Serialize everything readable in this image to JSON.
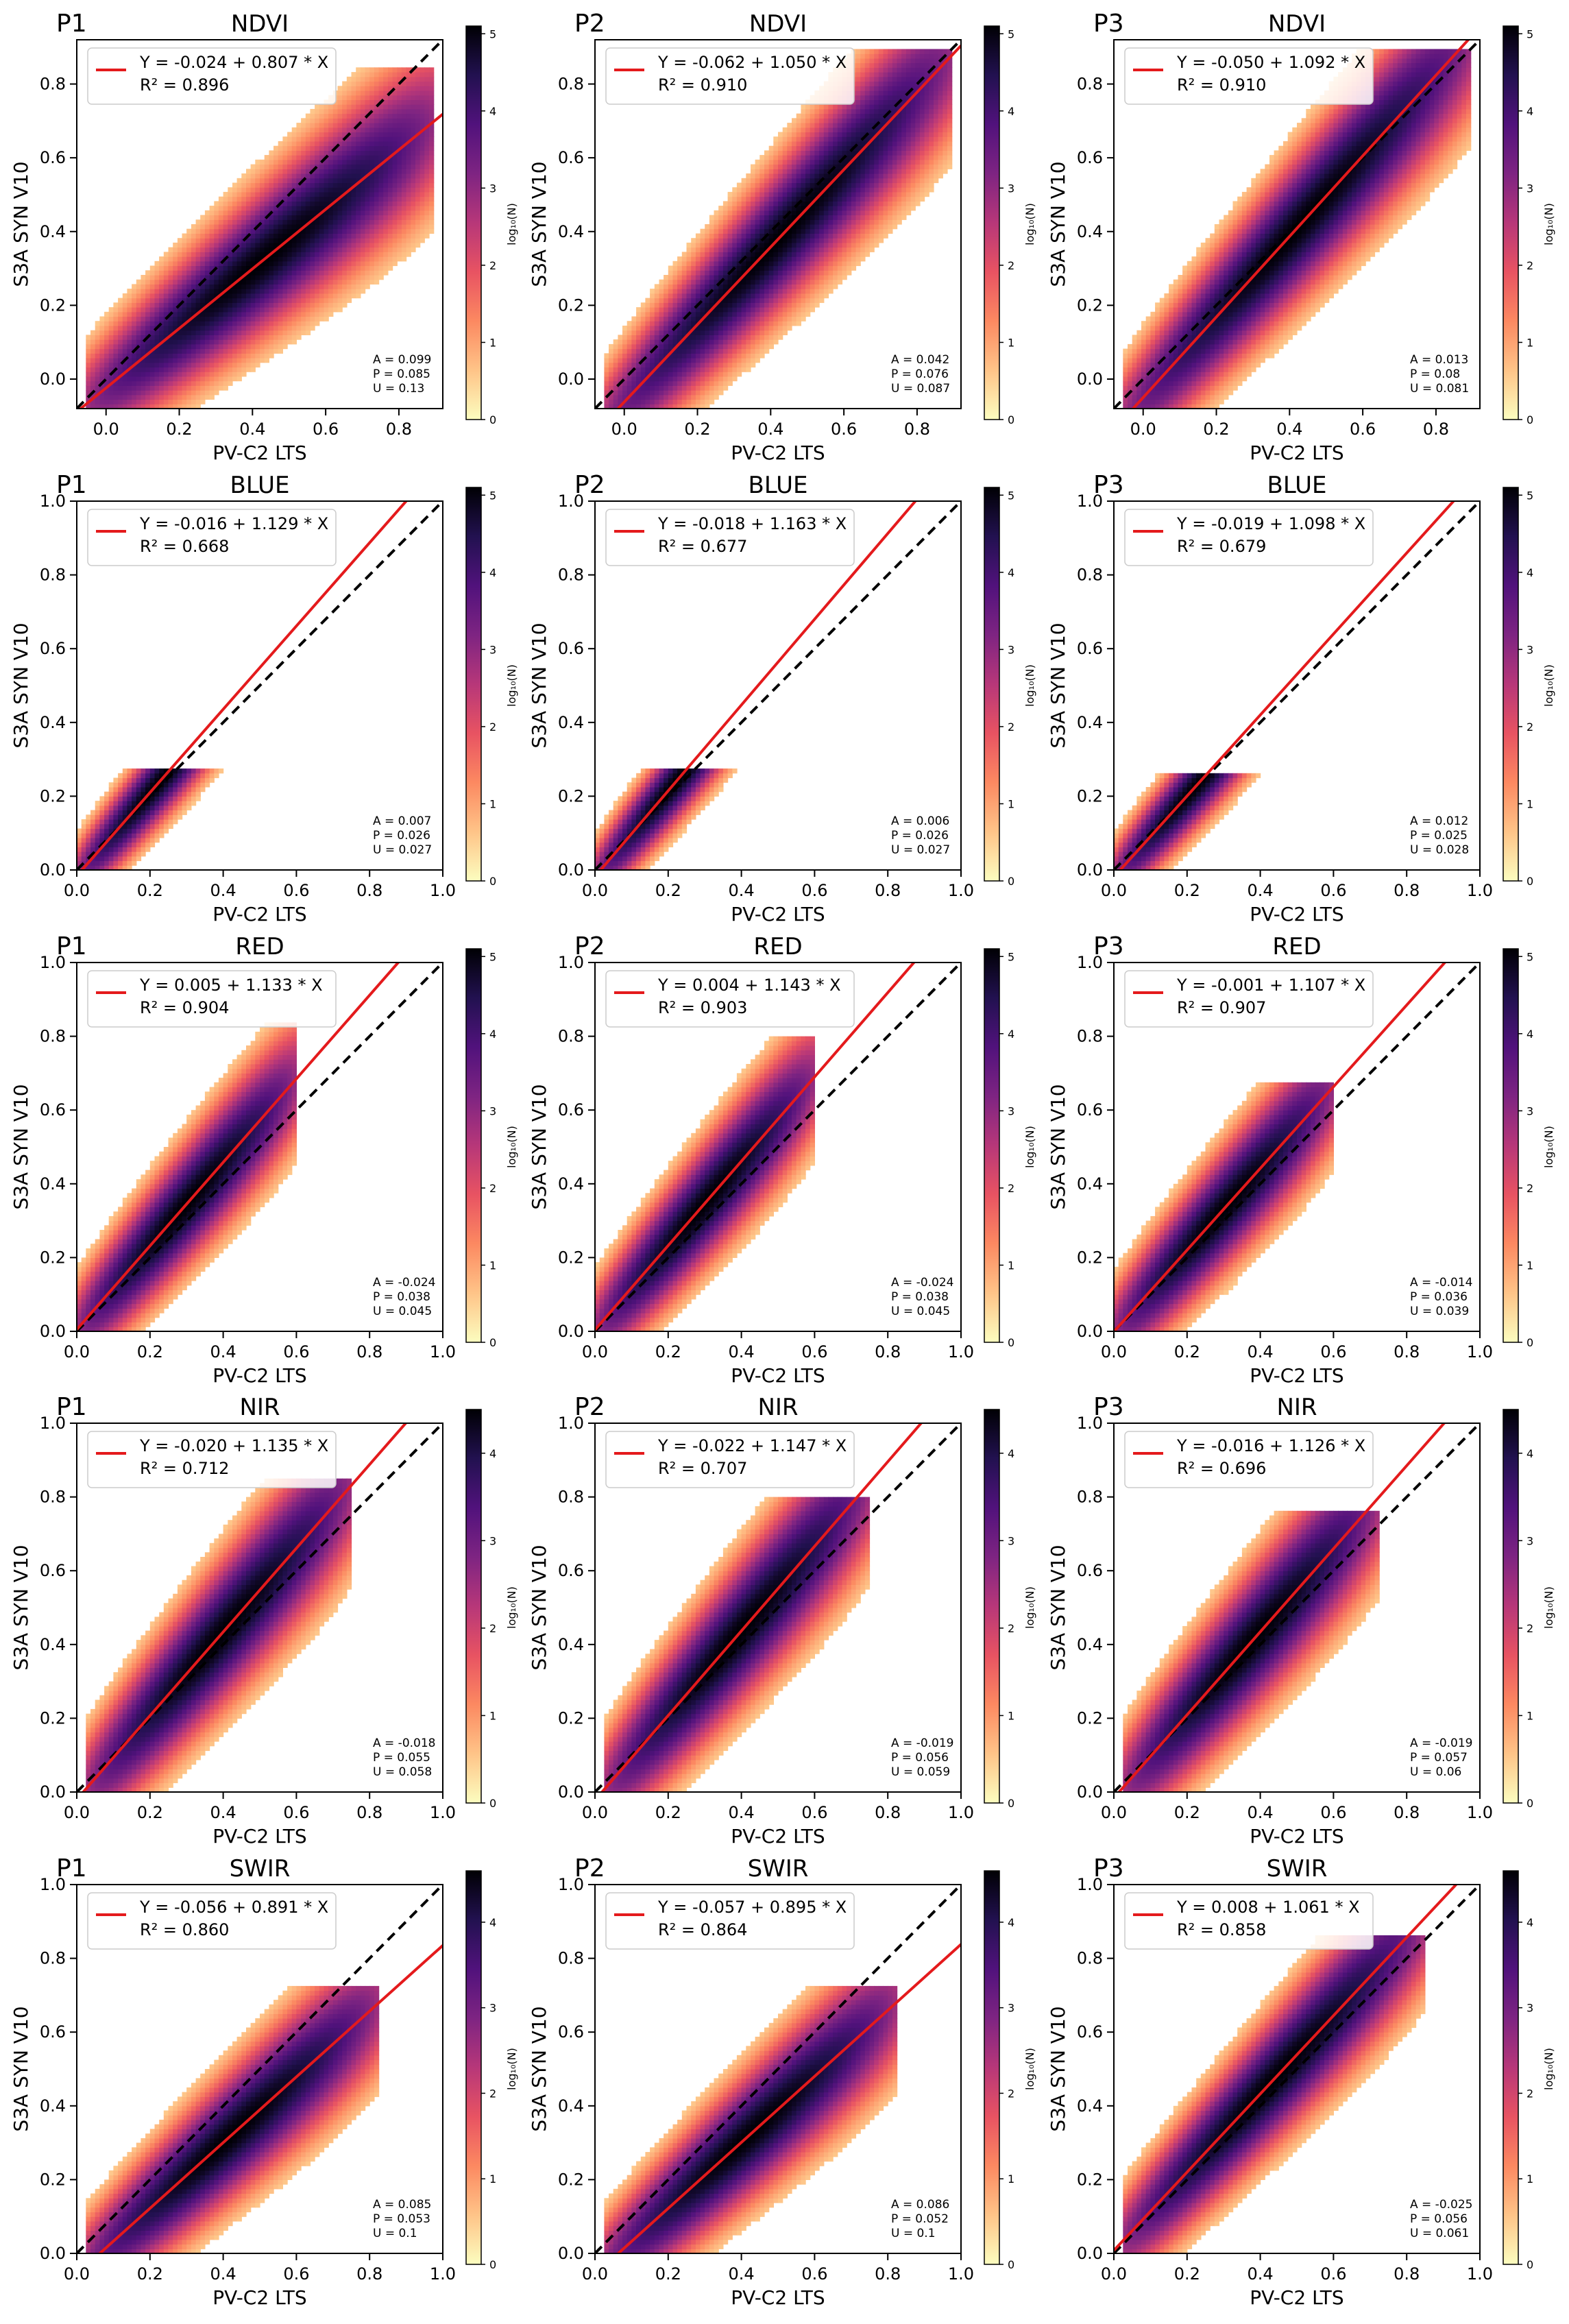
{
  "colors": {
    "identity_line": "#000000",
    "fit_line": "#e41a1c",
    "colormap": [
      "#fcfdbf",
      "#fec488",
      "#fc8961",
      "#e85362",
      "#b73779",
      "#7e2482",
      "#51127c",
      "#221150",
      "#000004"
    ]
  },
  "chart_data": [
    {
      "type": "heatmap",
      "panel": "P1",
      "title": "NDVI",
      "xlabel": "PV-C2 LTS",
      "ylabel": "S3A SYN V10",
      "xlim": [
        -0.08,
        0.92
      ],
      "ylim": [
        -0.08,
        0.92
      ],
      "xticks": [
        0.0,
        0.2,
        0.4,
        0.6,
        0.8
      ],
      "yticks": [
        0.0,
        0.2,
        0.4,
        0.6,
        0.8
      ],
      "tick_labels": [
        "0.0",
        "0.2",
        "0.4",
        "0.6",
        "0.8"
      ],
      "fit": {
        "intercept": -0.024,
        "slope": 0.807,
        "r2": 0.896
      },
      "equation": "Y = -0.024 + 0.807 * X",
      "r2_label": "R² = 0.896",
      "stats": [
        "A = 0.099",
        "P = 0.085",
        "U = 0.13"
      ],
      "colorbar": {
        "label": "log₁₀(N)",
        "max": 5.1,
        "ticks": [
          "0",
          "1",
          "2",
          "3",
          "4",
          "5"
        ]
      },
      "density": {
        "spread": 0.08,
        "extent": [
          -0.05,
          0.9
        ],
        "ymax": 0.85
      }
    },
    {
      "type": "heatmap",
      "panel": "P2",
      "title": "NDVI",
      "xlabel": "PV-C2 LTS",
      "ylabel": "S3A SYN V10",
      "xlim": [
        -0.08,
        0.92
      ],
      "ylim": [
        -0.08,
        0.92
      ],
      "xticks": [
        0.0,
        0.2,
        0.4,
        0.6,
        0.8
      ],
      "yticks": [
        0.0,
        0.2,
        0.4,
        0.6,
        0.8
      ],
      "tick_labels": [
        "0.0",
        "0.2",
        "0.4",
        "0.6",
        "0.8"
      ],
      "fit": {
        "intercept": -0.062,
        "slope": 1.05,
        "r2": 0.91
      },
      "equation": "Y = -0.062 + 1.050 * X",
      "r2_label": "R² = 0.910",
      "stats": [
        "A = 0.042",
        "P = 0.076",
        "U = 0.087"
      ],
      "colorbar": {
        "label": "log₁₀(N)",
        "max": 5.1,
        "ticks": [
          "0",
          "1",
          "2",
          "3",
          "4",
          "5"
        ]
      },
      "density": {
        "spread": 0.08,
        "extent": [
          -0.05,
          0.9
        ],
        "ymax": 0.9
      }
    },
    {
      "type": "heatmap",
      "panel": "P3",
      "title": "NDVI",
      "xlabel": "PV-C2 LTS",
      "ylabel": "S3A SYN V10",
      "xlim": [
        -0.08,
        0.92
      ],
      "ylim": [
        -0.08,
        0.92
      ],
      "xticks": [
        0.0,
        0.2,
        0.4,
        0.6,
        0.8
      ],
      "yticks": [
        0.0,
        0.2,
        0.4,
        0.6,
        0.8
      ],
      "tick_labels": [
        "0.0",
        "0.2",
        "0.4",
        "0.6",
        "0.8"
      ],
      "fit": {
        "intercept": -0.05,
        "slope": 1.092,
        "r2": 0.91
      },
      "equation": "Y = -0.050 + 1.092 * X",
      "r2_label": "R² = 0.910",
      "stats": [
        "A = 0.013",
        "P = 0.08",
        "U = 0.081"
      ],
      "colorbar": {
        "label": "log₁₀(N)",
        "max": 5.1,
        "ticks": [
          "0",
          "1",
          "2",
          "3",
          "4",
          "5"
        ]
      },
      "density": {
        "spread": 0.08,
        "extent": [
          -0.05,
          0.9
        ],
        "ymax": 0.9
      }
    },
    {
      "type": "heatmap",
      "panel": "P1",
      "title": "BLUE",
      "xlabel": "PV-C2 LTS",
      "ylabel": "S3A SYN V10",
      "xlim": [
        0,
        1
      ],
      "ylim": [
        0,
        1
      ],
      "xticks": [
        0.0,
        0.2,
        0.4,
        0.6,
        0.8,
        1.0
      ],
      "yticks": [
        0.0,
        0.2,
        0.4,
        0.6,
        0.8,
        1.0
      ],
      "tick_labels": [
        "0.0",
        "0.2",
        "0.4",
        "0.6",
        "0.8",
        "1.0"
      ],
      "fit": {
        "intercept": -0.016,
        "slope": 1.129,
        "r2": 0.668
      },
      "equation": "Y = -0.016 + 1.129 * X",
      "r2_label": "R² = 0.668",
      "stats": [
        "A = 0.007",
        "P = 0.026",
        "U = 0.027"
      ],
      "colorbar": {
        "label": "log₁₀(N)",
        "max": 5.1,
        "ticks": [
          "0",
          "1",
          "2",
          "3",
          "4",
          "5"
        ]
      },
      "density": {
        "spread": 0.05,
        "extent": [
          0,
          0.45
        ],
        "ymax": 0.28
      }
    },
    {
      "type": "heatmap",
      "panel": "P2",
      "title": "BLUE",
      "xlabel": "PV-C2 LTS",
      "ylabel": "S3A SYN V10",
      "xlim": [
        0,
        1
      ],
      "ylim": [
        0,
        1
      ],
      "xticks": [
        0.0,
        0.2,
        0.4,
        0.6,
        0.8,
        1.0
      ],
      "yticks": [
        0.0,
        0.2,
        0.4,
        0.6,
        0.8,
        1.0
      ],
      "tick_labels": [
        "0.0",
        "0.2",
        "0.4",
        "0.6",
        "0.8",
        "1.0"
      ],
      "fit": {
        "intercept": -0.018,
        "slope": 1.163,
        "r2": 0.677
      },
      "equation": "Y = -0.018 + 1.163 * X",
      "r2_label": "R² = 0.677",
      "stats": [
        "A = 0.006",
        "P = 0.026",
        "U = 0.027"
      ],
      "colorbar": {
        "label": "log₁₀(N)",
        "max": 5.1,
        "ticks": [
          "0",
          "1",
          "2",
          "3",
          "4",
          "5"
        ]
      },
      "density": {
        "spread": 0.05,
        "extent": [
          0,
          0.45
        ],
        "ymax": 0.28
      }
    },
    {
      "type": "heatmap",
      "panel": "P3",
      "title": "BLUE",
      "xlabel": "PV-C2 LTS",
      "ylabel": "S3A SYN V10",
      "xlim": [
        0,
        1
      ],
      "ylim": [
        0,
        1
      ],
      "xticks": [
        0.0,
        0.2,
        0.4,
        0.6,
        0.8,
        1.0
      ],
      "yticks": [
        0.0,
        0.2,
        0.4,
        0.6,
        0.8,
        1.0
      ],
      "tick_labels": [
        "0.0",
        "0.2",
        "0.4",
        "0.6",
        "0.8",
        "1.0"
      ],
      "fit": {
        "intercept": -0.019,
        "slope": 1.098,
        "r2": 0.679
      },
      "equation": "Y = -0.019 + 1.098 * X",
      "r2_label": "R² = 0.679",
      "stats": [
        "A = 0.012",
        "P = 0.025",
        "U = 0.028"
      ],
      "colorbar": {
        "label": "log₁₀(N)",
        "max": 5.1,
        "ticks": [
          "0",
          "1",
          "2",
          "3",
          "4",
          "5"
        ]
      },
      "density": {
        "spread": 0.05,
        "extent": [
          0,
          0.45
        ],
        "ymax": 0.26
      }
    },
    {
      "type": "heatmap",
      "panel": "P1",
      "title": "RED",
      "xlabel": "PV-C2 LTS",
      "ylabel": "S3A SYN V10",
      "xlim": [
        0,
        1
      ],
      "ylim": [
        0,
        1
      ],
      "xticks": [
        0.0,
        0.2,
        0.4,
        0.6,
        0.8,
        1.0
      ],
      "yticks": [
        0.0,
        0.2,
        0.4,
        0.6,
        0.8,
        1.0
      ],
      "tick_labels": [
        "0.0",
        "0.2",
        "0.4",
        "0.6",
        "0.8",
        "1.0"
      ],
      "fit": {
        "intercept": 0.005,
        "slope": 1.133,
        "r2": 0.904
      },
      "equation": "Y = 0.005 + 1.133 * X",
      "r2_label": "R² = 0.904",
      "stats": [
        "A = -0.024",
        "P = 0.038",
        "U = 0.045"
      ],
      "colorbar": {
        "label": "log₁₀(N)",
        "max": 5.1,
        "ticks": [
          "0",
          "1",
          "2",
          "3",
          "4",
          "5"
        ]
      },
      "density": {
        "spread": 0.07,
        "extent": [
          0,
          0.6
        ],
        "ymax": 0.84
      }
    },
    {
      "type": "heatmap",
      "panel": "P2",
      "title": "RED",
      "xlabel": "PV-C2 LTS",
      "ylabel": "S3A SYN V10",
      "xlim": [
        0,
        1
      ],
      "ylim": [
        0,
        1
      ],
      "xticks": [
        0.0,
        0.2,
        0.4,
        0.6,
        0.8,
        1.0
      ],
      "yticks": [
        0.0,
        0.2,
        0.4,
        0.6,
        0.8,
        1.0
      ],
      "tick_labels": [
        "0.0",
        "0.2",
        "0.4",
        "0.6",
        "0.8",
        "1.0"
      ],
      "fit": {
        "intercept": 0.004,
        "slope": 1.143,
        "r2": 0.903
      },
      "equation": "Y = 0.004 + 1.143 * X",
      "r2_label": "R² = 0.903",
      "stats": [
        "A = -0.024",
        "P = 0.038",
        "U = 0.045"
      ],
      "colorbar": {
        "label": "log₁₀(N)",
        "max": 5.1,
        "ticks": [
          "0",
          "1",
          "2",
          "3",
          "4",
          "5"
        ]
      },
      "density": {
        "spread": 0.07,
        "extent": [
          0,
          0.6
        ],
        "ymax": 0.8
      }
    },
    {
      "type": "heatmap",
      "panel": "P3",
      "title": "RED",
      "xlabel": "PV-C2 LTS",
      "ylabel": "S3A SYN V10",
      "xlim": [
        0,
        1
      ],
      "ylim": [
        0,
        1
      ],
      "xticks": [
        0.0,
        0.2,
        0.4,
        0.6,
        0.8,
        1.0
      ],
      "yticks": [
        0.0,
        0.2,
        0.4,
        0.6,
        0.8,
        1.0
      ],
      "tick_labels": [
        "0.0",
        "0.2",
        "0.4",
        "0.6",
        "0.8",
        "1.0"
      ],
      "fit": {
        "intercept": -0.001,
        "slope": 1.107,
        "r2": 0.907
      },
      "equation": "Y = -0.001 + 1.107 * X",
      "r2_label": "R² = 0.907",
      "stats": [
        "A = -0.014",
        "P = 0.036",
        "U = 0.039"
      ],
      "colorbar": {
        "label": "log₁₀(N)",
        "max": 5.1,
        "ticks": [
          "0",
          "1",
          "2",
          "3",
          "4",
          "5"
        ]
      },
      "density": {
        "spread": 0.07,
        "extent": [
          0,
          0.6
        ],
        "ymax": 0.68
      }
    },
    {
      "type": "heatmap",
      "panel": "P1",
      "title": "NIR",
      "xlabel": "PV-C2 LTS",
      "ylabel": "S3A SYN V10",
      "xlim": [
        0,
        1
      ],
      "ylim": [
        0,
        1
      ],
      "xticks": [
        0.0,
        0.2,
        0.4,
        0.6,
        0.8,
        1.0
      ],
      "yticks": [
        0.0,
        0.2,
        0.4,
        0.6,
        0.8,
        1.0
      ],
      "tick_labels": [
        "0.0",
        "0.2",
        "0.4",
        "0.6",
        "0.8",
        "1.0"
      ],
      "fit": {
        "intercept": -0.02,
        "slope": 1.135,
        "r2": 0.712
      },
      "equation": "Y = -0.020 + 1.135 * X",
      "r2_label": "R² = 0.712",
      "stats": [
        "A = -0.018",
        "P = 0.055",
        "U = 0.058"
      ],
      "colorbar": {
        "label": "log₁₀(N)",
        "max": 4.5,
        "ticks": [
          "0",
          "1",
          "2",
          "3",
          "4"
        ]
      },
      "density": {
        "spread": 0.08,
        "extent": [
          0.03,
          0.75
        ],
        "ymax": 0.85
      }
    },
    {
      "type": "heatmap",
      "panel": "P2",
      "title": "NIR",
      "xlabel": "PV-C2 LTS",
      "ylabel": "S3A SYN V10",
      "xlim": [
        0,
        1
      ],
      "ylim": [
        0,
        1
      ],
      "xticks": [
        0.0,
        0.2,
        0.4,
        0.6,
        0.8,
        1.0
      ],
      "yticks": [
        0.0,
        0.2,
        0.4,
        0.6,
        0.8,
        1.0
      ],
      "tick_labels": [
        "0.0",
        "0.2",
        "0.4",
        "0.6",
        "0.8",
        "1.0"
      ],
      "fit": {
        "intercept": -0.022,
        "slope": 1.147,
        "r2": 0.707
      },
      "equation": "Y = -0.022 + 1.147 * X",
      "r2_label": "R² = 0.707",
      "stats": [
        "A = -0.019",
        "P = 0.056",
        "U = 0.059"
      ],
      "colorbar": {
        "label": "log₁₀(N)",
        "max": 4.5,
        "ticks": [
          "0",
          "1",
          "2",
          "3",
          "4"
        ]
      },
      "density": {
        "spread": 0.08,
        "extent": [
          0.03,
          0.75
        ],
        "ymax": 0.8
      }
    },
    {
      "type": "heatmap",
      "panel": "P3",
      "title": "NIR",
      "xlabel": "PV-C2 LTS",
      "ylabel": "S3A SYN V10",
      "xlim": [
        0,
        1
      ],
      "ylim": [
        0,
        1
      ],
      "xticks": [
        0.0,
        0.2,
        0.4,
        0.6,
        0.8,
        1.0
      ],
      "yticks": [
        0.0,
        0.2,
        0.4,
        0.6,
        0.8,
        1.0
      ],
      "tick_labels": [
        "0.0",
        "0.2",
        "0.4",
        "0.6",
        "0.8",
        "1.0"
      ],
      "fit": {
        "intercept": -0.016,
        "slope": 1.126,
        "r2": 0.696
      },
      "equation": "Y = -0.016 + 1.126 * X",
      "r2_label": "R² = 0.696",
      "stats": [
        "A = -0.019",
        "P = 0.057",
        "U = 0.06"
      ],
      "colorbar": {
        "label": "log₁₀(N)",
        "max": 4.5,
        "ticks": [
          "0",
          "1",
          "2",
          "3",
          "4"
        ]
      },
      "density": {
        "spread": 0.08,
        "extent": [
          0.03,
          0.72
        ],
        "ymax": 0.76
      }
    },
    {
      "type": "heatmap",
      "panel": "P1",
      "title": "SWIR",
      "xlabel": "PV-C2 LTS",
      "ylabel": "S3A SYN V10",
      "xlim": [
        0,
        1
      ],
      "ylim": [
        0,
        1
      ],
      "xticks": [
        0.0,
        0.2,
        0.4,
        0.6,
        0.8,
        1.0
      ],
      "yticks": [
        0.0,
        0.2,
        0.4,
        0.6,
        0.8,
        1.0
      ],
      "tick_labels": [
        "0.0",
        "0.2",
        "0.4",
        "0.6",
        "0.8",
        "1.0"
      ],
      "fit": {
        "intercept": -0.056,
        "slope": 0.891,
        "r2": 0.86
      },
      "equation": "Y = -0.056 + 0.891 * X",
      "r2_label": "R² = 0.860",
      "stats": [
        "A = 0.085",
        "P = 0.053",
        "U = 0.1"
      ],
      "colorbar": {
        "label": "log₁₀(N)",
        "max": 4.6,
        "ticks": [
          "0",
          "1",
          "2",
          "3",
          "4"
        ]
      },
      "density": {
        "spread": 0.07,
        "extent": [
          0.02,
          0.82
        ],
        "ymax": 0.72
      }
    },
    {
      "type": "heatmap",
      "panel": "P2",
      "title": "SWIR",
      "xlabel": "PV-C2 LTS",
      "ylabel": "S3A SYN V10",
      "xlim": [
        0,
        1
      ],
      "ylim": [
        0,
        1
      ],
      "xticks": [
        0.0,
        0.2,
        0.4,
        0.6,
        0.8,
        1.0
      ],
      "yticks": [
        0.0,
        0.2,
        0.4,
        0.6,
        0.8,
        1.0
      ],
      "tick_labels": [
        "0.0",
        "0.2",
        "0.4",
        "0.6",
        "0.8",
        "1.0"
      ],
      "fit": {
        "intercept": -0.057,
        "slope": 0.895,
        "r2": 0.864
      },
      "equation": "Y = -0.057 + 0.895 * X",
      "r2_label": "R² = 0.864",
      "stats": [
        "A = 0.086",
        "P = 0.052",
        "U = 0.1"
      ],
      "colorbar": {
        "label": "log₁₀(N)",
        "max": 4.6,
        "ticks": [
          "0",
          "1",
          "2",
          "3",
          "4"
        ]
      },
      "density": {
        "spread": 0.07,
        "extent": [
          0.02,
          0.82
        ],
        "ymax": 0.72
      }
    },
    {
      "type": "heatmap",
      "panel": "P3",
      "title": "SWIR",
      "xlabel": "PV-C2 LTS",
      "ylabel": "S3A SYN V10",
      "xlim": [
        0,
        1
      ],
      "ylim": [
        0,
        1
      ],
      "xticks": [
        0.0,
        0.2,
        0.4,
        0.6,
        0.8,
        1.0
      ],
      "yticks": [
        0.0,
        0.2,
        0.4,
        0.6,
        0.8,
        1.0
      ],
      "tick_labels": [
        "0.0",
        "0.2",
        "0.4",
        "0.6",
        "0.8",
        "1.0"
      ],
      "fit": {
        "intercept": 0.008,
        "slope": 1.061,
        "r2": 0.858
      },
      "equation": "Y = 0.008 + 1.061 * X",
      "r2_label": "R² = 0.858",
      "stats": [
        "A = -0.025",
        "P = 0.056",
        "U = 0.061"
      ],
      "colorbar": {
        "label": "log₁₀(N)",
        "max": 4.6,
        "ticks": [
          "0",
          "1",
          "2",
          "3",
          "4"
        ]
      },
      "density": {
        "spread": 0.07,
        "extent": [
          0.02,
          0.85
        ],
        "ymax": 0.86
      }
    }
  ]
}
